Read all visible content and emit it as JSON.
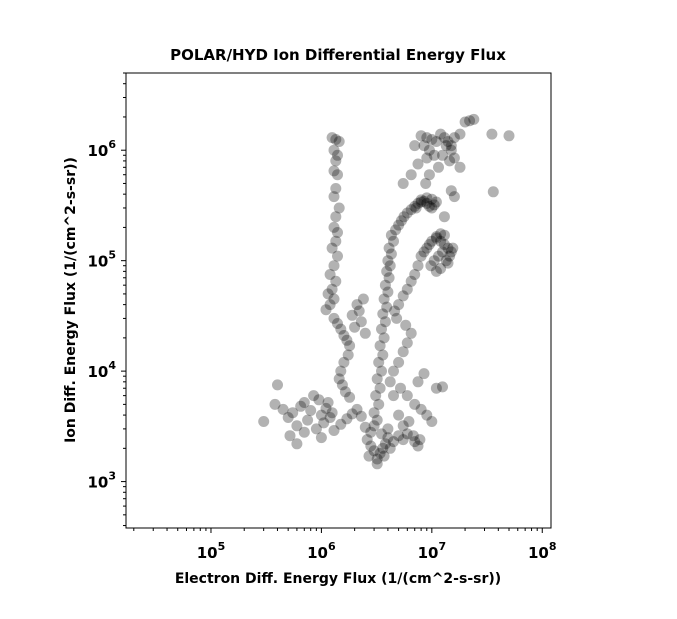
{
  "chart_data": {
    "type": "scatter",
    "title": "POLAR/HYD  Ion Differential Energy Flux",
    "xlabel": "Electron Diff. Energy Flux (1/(cm^2-s-sr))",
    "ylabel": "Ion Diff. Energy Flux (1/(cm^2-s-sr))",
    "xscale": "log",
    "yscale": "log",
    "xlim": [
      17000,
      120000000
    ],
    "ylim": [
      380,
      5000000
    ],
    "xticks": [
      {
        "value": 100000,
        "base": "10",
        "exp": "5"
      },
      {
        "value": 1000000,
        "base": "10",
        "exp": "6"
      },
      {
        "value": 10000000,
        "base": "10",
        "exp": "7"
      },
      {
        "value": 100000000,
        "base": "10",
        "exp": "8"
      }
    ],
    "yticks": [
      {
        "value": 1000,
        "base": "10",
        "exp": "3"
      },
      {
        "value": 10000,
        "base": "10",
        "exp": "4"
      },
      {
        "value": 100000,
        "base": "10",
        "exp": "5"
      },
      {
        "value": 1000000,
        "base": "10",
        "exp": "6"
      }
    ],
    "grid": false,
    "marker_color": "#000000",
    "marker_alpha": 0.3,
    "series": [
      {
        "points": [
          [
            1250000,
            1300000
          ],
          [
            1350000,
            1250000
          ],
          [
            1450000,
            1200000
          ],
          [
            1300000,
            1000000
          ],
          [
            1400000,
            900000
          ],
          [
            1350000,
            800000
          ],
          [
            1300000,
            650000
          ],
          [
            1400000,
            600000
          ],
          [
            1350000,
            450000
          ],
          [
            1300000,
            380000
          ],
          [
            1450000,
            300000
          ],
          [
            1350000,
            250000
          ],
          [
            1300000,
            200000
          ],
          [
            1400000,
            180000
          ],
          [
            1350000,
            150000
          ],
          [
            1250000,
            130000
          ],
          [
            1400000,
            110000
          ],
          [
            1300000,
            90000
          ],
          [
            1200000,
            75000
          ],
          [
            1350000,
            65000
          ],
          [
            1250000,
            55000
          ],
          [
            1150000,
            50000
          ],
          [
            1300000,
            45000
          ],
          [
            1200000,
            40000
          ],
          [
            1100000,
            36000
          ],
          [
            1300000,
            30000
          ],
          [
            1400000,
            27000
          ],
          [
            1500000,
            24000
          ],
          [
            1600000,
            21000
          ],
          [
            1700000,
            19000
          ],
          [
            1800000,
            17000
          ],
          [
            2000000,
            25000
          ],
          [
            2200000,
            35000
          ],
          [
            2400000,
            45000
          ],
          [
            2100000,
            40000
          ],
          [
            1900000,
            32000
          ],
          [
            2300000,
            28000
          ],
          [
            2500000,
            22000
          ],
          [
            1750000,
            14000
          ],
          [
            1600000,
            12000
          ],
          [
            1500000,
            10000
          ],
          [
            1450000,
            8500
          ],
          [
            1550000,
            7500
          ],
          [
            1650000,
            6500
          ],
          [
            1800000,
            5800
          ],
          [
            300000,
            3500
          ],
          [
            380000,
            5000
          ],
          [
            400000,
            7500
          ],
          [
            450000,
            4500
          ],
          [
            500000,
            3800
          ],
          [
            550000,
            4200
          ],
          [
            600000,
            3200
          ],
          [
            650000,
            4800
          ],
          [
            700000,
            5200
          ],
          [
            750000,
            3600
          ],
          [
            800000,
            4400
          ],
          [
            850000,
            6000
          ],
          [
            900000,
            3000
          ],
          [
            950000,
            5500
          ],
          [
            1000000,
            4000
          ],
          [
            1050000,
            3400
          ],
          [
            1100000,
            4600
          ],
          [
            1150000,
            5200
          ],
          [
            1200000,
            3800
          ],
          [
            1250000,
            4200
          ],
          [
            520000,
            2600
          ],
          [
            600000,
            2200
          ],
          [
            700000,
            2800
          ],
          [
            1000000,
            2500
          ],
          [
            1300000,
            2900
          ],
          [
            1500000,
            3300
          ],
          [
            1700000,
            3700
          ],
          [
            1900000,
            4100
          ],
          [
            2100000,
            4500
          ],
          [
            2300000,
            3900
          ],
          [
            2500000,
            3100
          ],
          [
            2600000,
            2400
          ],
          [
            2800000,
            2100
          ],
          [
            3000000,
            1900
          ],
          [
            3200000,
            1600
          ],
          [
            3400000,
            1800
          ],
          [
            3600000,
            2000
          ],
          [
            3200000,
            1450
          ],
          [
            2700000,
            1700
          ],
          [
            3800000,
            2200
          ],
          [
            4000000,
            2500
          ],
          [
            4500000,
            2300
          ],
          [
            5000000,
            2600
          ],
          [
            5500000,
            2400
          ],
          [
            6000000,
            2700
          ],
          [
            7000000,
            2300
          ],
          [
            7500000,
            2100
          ],
          [
            2800000,
            2800
          ],
          [
            3000000,
            3200
          ],
          [
            3200000,
            3600
          ],
          [
            3000000,
            4200
          ],
          [
            3300000,
            5000
          ],
          [
            3100000,
            6000
          ],
          [
            3400000,
            7000
          ],
          [
            3200000,
            8500
          ],
          [
            3500000,
            10000
          ],
          [
            3300000,
            12000
          ],
          [
            3600000,
            14000
          ],
          [
            3400000,
            17000
          ],
          [
            3700000,
            20000
          ],
          [
            3500000,
            24000
          ],
          [
            3800000,
            28000
          ],
          [
            3600000,
            33000
          ],
          [
            3900000,
            38000
          ],
          [
            3700000,
            45000
          ],
          [
            4000000,
            52000
          ],
          [
            3800000,
            60000
          ],
          [
            4100000,
            70000
          ],
          [
            3900000,
            80000
          ],
          [
            4200000,
            90000
          ],
          [
            4000000,
            100000
          ],
          [
            4300000,
            115000
          ],
          [
            4100000,
            130000
          ],
          [
            4500000,
            150000
          ],
          [
            4300000,
            170000
          ],
          [
            4700000,
            190000
          ],
          [
            5000000,
            210000
          ],
          [
            5300000,
            230000
          ],
          [
            5600000,
            250000
          ],
          [
            6000000,
            270000
          ],
          [
            6500000,
            290000
          ],
          [
            7000000,
            310000
          ],
          [
            7500000,
            330000
          ],
          [
            8000000,
            340000
          ],
          [
            8500000,
            345000
          ],
          [
            9000000,
            330000
          ],
          [
            9500000,
            310000
          ],
          [
            10000000,
            300000
          ],
          [
            10500000,
            320000
          ],
          [
            11000000,
            340000
          ],
          [
            10000000,
            360000
          ],
          [
            9000000,
            370000
          ],
          [
            8000000,
            355000
          ],
          [
            7200000,
            300000
          ],
          [
            4600000,
            35000
          ],
          [
            5000000,
            40000
          ],
          [
            5500000,
            48000
          ],
          [
            6000000,
            55000
          ],
          [
            6500000,
            65000
          ],
          [
            7000000,
            75000
          ],
          [
            7500000,
            90000
          ],
          [
            8000000,
            110000
          ],
          [
            8500000,
            120000
          ],
          [
            9000000,
            130000
          ],
          [
            9500000,
            140000
          ],
          [
            10000000,
            150000
          ],
          [
            11000000,
            160000
          ],
          [
            12000000,
            150000
          ],
          [
            13000000,
            140000
          ],
          [
            14000000,
            130000
          ],
          [
            12500000,
            120000
          ],
          [
            11500000,
            110000
          ],
          [
            10500000,
            100000
          ],
          [
            9800000,
            90000
          ],
          [
            13500000,
            100000
          ],
          [
            14500000,
            110000
          ],
          [
            15000000,
            120000
          ],
          [
            14000000,
            95000
          ],
          [
            12000000,
            85000
          ],
          [
            11000000,
            80000
          ],
          [
            15500000,
            130000
          ],
          [
            13000000,
            170000
          ],
          [
            12000000,
            175000
          ],
          [
            11000000,
            165000
          ],
          [
            4200000,
            8000
          ],
          [
            4500000,
            10000
          ],
          [
            5000000,
            12000
          ],
          [
            5500000,
            15000
          ],
          [
            6000000,
            18000
          ],
          [
            6500000,
            22000
          ],
          [
            5800000,
            26000
          ],
          [
            4800000,
            30000
          ],
          [
            5200000,
            7000
          ],
          [
            6000000,
            6000
          ],
          [
            7000000,
            5000
          ],
          [
            8000000,
            4500
          ],
          [
            9000000,
            4000
          ],
          [
            10000000,
            3500
          ],
          [
            7500000,
            8000
          ],
          [
            8500000,
            9500
          ],
          [
            11000000,
            7000
          ],
          [
            12500000,
            7200
          ],
          [
            6800000,
            2600
          ],
          [
            7800000,
            2400
          ],
          [
            4500000,
            6000
          ],
          [
            5000000,
            4000
          ],
          [
            5500000,
            3200
          ],
          [
            6200000,
            3500
          ],
          [
            4000000,
            3000
          ],
          [
            3500000,
            2700
          ],
          [
            4200000,
            2000
          ],
          [
            3700000,
            1700
          ],
          [
            12000000,
            1400000
          ],
          [
            13000000,
            1300000
          ],
          [
            14000000,
            1200000
          ],
          [
            15000000,
            1100000
          ],
          [
            16000000,
            1300000
          ],
          [
            18000000,
            1400000
          ],
          [
            20000000,
            1800000
          ],
          [
            22000000,
            1850000
          ],
          [
            24000000,
            1900000
          ],
          [
            35000000,
            1400000
          ],
          [
            50000000,
            1350000
          ],
          [
            36000000,
            420000
          ],
          [
            18000000,
            700000
          ],
          [
            16000000,
            850000
          ],
          [
            15000000,
            1000000
          ],
          [
            13500000,
            1100000
          ],
          [
            8000000,
            1350000
          ],
          [
            9000000,
            1300000
          ],
          [
            10000000,
            1250000
          ],
          [
            11000000,
            1200000
          ],
          [
            8500000,
            1100000
          ],
          [
            9500000,
            1000000
          ],
          [
            10500000,
            900000
          ],
          [
            9000000,
            850000
          ],
          [
            7500000,
            750000
          ],
          [
            6500000,
            600000
          ],
          [
            5500000,
            500000
          ],
          [
            7000000,
            1100000
          ],
          [
            12500000,
            900000
          ],
          [
            14500000,
            800000
          ],
          [
            11500000,
            700000
          ],
          [
            9500000,
            600000
          ],
          [
            8800000,
            500000
          ],
          [
            13000000,
            250000
          ],
          [
            15000000,
            430000
          ],
          [
            16000000,
            380000
          ]
        ]
      }
    ]
  }
}
